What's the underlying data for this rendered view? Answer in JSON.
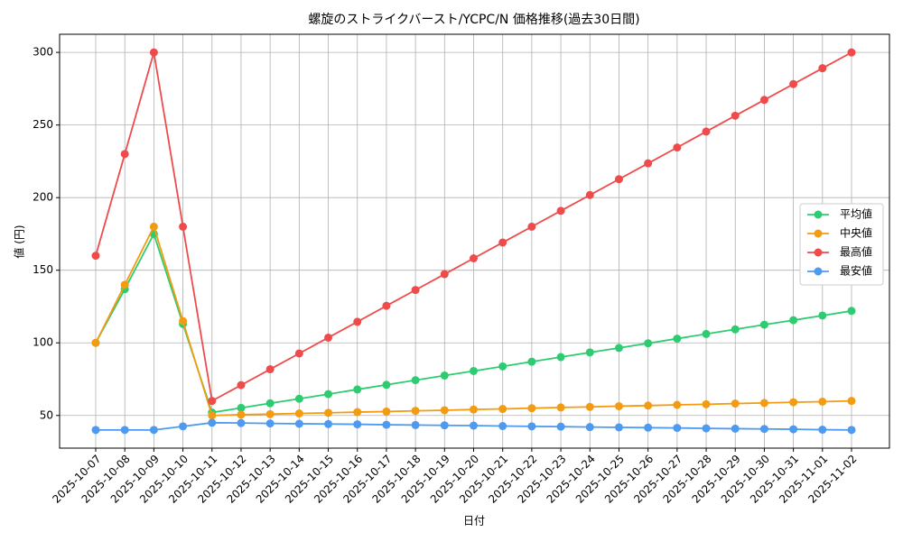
{
  "chart_data": {
    "type": "line",
    "title": "螺旋のストライクバースト/YCPC/N 価格推移(過去30日間)",
    "x_label": "日付",
    "y_label": "値 (円)",
    "categories": [
      "2025-10-07",
      "2025-10-08",
      "2025-10-09",
      "2025-10-10",
      "2025-10-11",
      "2025-10-12",
      "2025-10-13",
      "2025-10-14",
      "2025-10-15",
      "2025-10-16",
      "2025-10-17",
      "2025-10-18",
      "2025-10-19",
      "2025-10-20",
      "2025-10-21",
      "2025-10-22",
      "2025-10-23",
      "2025-10-24",
      "2025-10-25",
      "2025-10-26",
      "2025-10-27",
      "2025-10-28",
      "2025-10-29",
      "2025-10-30",
      "2025-10-31",
      "2025-11-01",
      "2025-11-02"
    ],
    "series": [
      {
        "name": "平均値",
        "color": "#2ecc71",
        "values": [
          100,
          137,
          175,
          113,
          52,
          55.2,
          58.4,
          61.5,
          64.7,
          67.9,
          71.1,
          74.3,
          77.5,
          80.6,
          83.8,
          87,
          90.2,
          93.4,
          96.5,
          99.7,
          102.9,
          106.1,
          109.3,
          112.5,
          115.6,
          118.8,
          122
        ]
      },
      {
        "name": "中央値",
        "color": "#f39c12",
        "values": [
          100,
          140,
          180,
          115,
          50,
          50.5,
          50.9,
          51.4,
          51.8,
          52.3,
          52.7,
          53.2,
          53.6,
          54.1,
          54.5,
          55,
          55.5,
          55.9,
          56.4,
          56.8,
          57.3,
          57.7,
          58.2,
          58.6,
          59.1,
          59.5,
          60
        ]
      },
      {
        "name": "最高値",
        "color": "#ef4b4b",
        "values": [
          160,
          230,
          300,
          180,
          60,
          70.9,
          81.8,
          92.7,
          103.6,
          114.5,
          125.5,
          136.4,
          147.3,
          158.2,
          169.1,
          180,
          190.9,
          201.8,
          212.7,
          223.6,
          234.5,
          245.5,
          256.4,
          267.3,
          278.2,
          289.1,
          300
        ]
      },
      {
        "name": "最安値",
        "color": "#4e9af1",
        "values": [
          40,
          40,
          40,
          42.5,
          45,
          44.8,
          44.5,
          44.3,
          44.1,
          43.9,
          43.6,
          43.4,
          43.2,
          43,
          42.7,
          42.5,
          42.3,
          42,
          41.8,
          41.6,
          41.4,
          41.1,
          40.9,
          40.7,
          40.5,
          40.2,
          40
        ]
      }
    ],
    "ylim": [
      27.5,
      312.5
    ],
    "yticks": [
      50,
      100,
      150,
      200,
      250,
      300
    ],
    "grid": true,
    "legend": "right"
  }
}
